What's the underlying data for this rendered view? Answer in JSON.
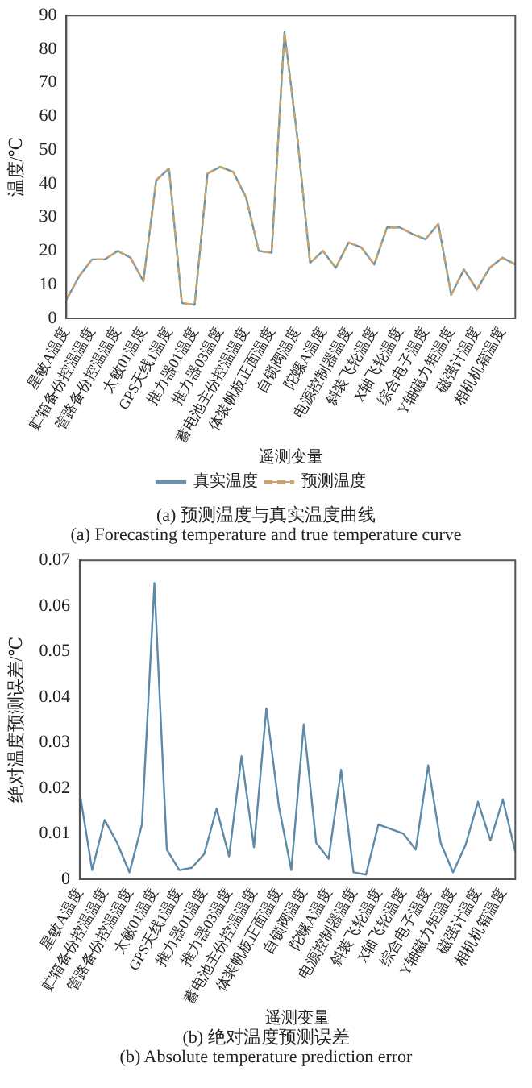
{
  "chart_data": [
    {
      "type": "line",
      "title": "(a) 预测温度与真实温度曲线",
      "subtitle": "(a) Forecasting temperature and true temperature curve",
      "xlabel": "遥测变量",
      "ylabel": "温度/℃",
      "categories": [
        "星敏A温度",
        null,
        "贮箱备份控温温度",
        null,
        "管路备份控温温度",
        null,
        "太敏01温度",
        null,
        "GPS天线1温度",
        null,
        "推力器01温度",
        null,
        "推力器03温度",
        null,
        "蓄电池主份控温温度",
        null,
        "体装帆板正面温度",
        null,
        "自锁阀温度",
        null,
        "陀螺A温度",
        null,
        "电源控制器温度",
        null,
        "斜装飞轮温度",
        null,
        "X轴飞轮温度",
        null,
        "综合电子温度",
        null,
        "Y轴磁力矩温度",
        null,
        "磁强计温度",
        null,
        "相机机箱温度",
        null
      ],
      "series": [
        {
          "name": "真实温度",
          "color": "#6a93ab",
          "line_style": "solid",
          "values": [
            5.5,
            12.5,
            17.5,
            17.5,
            20,
            18,
            11,
            41,
            44.5,
            4.5,
            4,
            43,
            45,
            43.5,
            36,
            20,
            19.5,
            85,
            54,
            16.5,
            20,
            15,
            22.5,
            21,
            16,
            27,
            27,
            25,
            23.5,
            28,
            7,
            14.5,
            8.5,
            15,
            18,
            16
          ]
        },
        {
          "name": "预测温度",
          "color": "#c9a46a",
          "line_style": "dashed",
          "values": [
            5.5,
            12.5,
            17.5,
            17.5,
            20,
            18,
            11,
            41,
            44.5,
            4.5,
            4,
            43,
            45,
            43.5,
            36,
            20,
            19.5,
            85,
            54,
            16.5,
            20,
            15,
            22.5,
            21,
            16,
            27,
            27,
            25,
            23.5,
            28,
            7,
            14.5,
            8.5,
            15,
            18,
            16
          ]
        }
      ],
      "ylim": [
        0,
        90
      ],
      "yticks": [
        0,
        10,
        20,
        30,
        40,
        50,
        60,
        70,
        80,
        90
      ],
      "grid": false,
      "legend": "bottom",
      "marker": "none"
    },
    {
      "type": "line",
      "title": "(b) 绝对温度预测误差",
      "subtitle": "(b) Absolute temperature prediction error",
      "xlabel": "遥测变量",
      "ylabel": "绝对温度预测误差/℃",
      "categories": [
        "星敏A温度",
        null,
        "贮箱备份控温温度",
        null,
        "管路备份控温温度",
        null,
        "太敏01温度",
        null,
        "GPS天线1温度",
        null,
        "推力器01温度",
        null,
        "推力器03温度",
        null,
        "蓄电池主份控温温度",
        null,
        "体装帆板正面温度",
        null,
        "自锁阀温度",
        null,
        "陀螺A温度",
        null,
        "电源控制器温度",
        null,
        "斜装飞轮温度",
        null,
        "X轴飞轮温度",
        null,
        "综合电子温度",
        null,
        "Y轴磁力矩温度",
        null,
        "磁强计温度",
        null,
        "相机机箱温度",
        null
      ],
      "series": [
        {
          "color": "#5d8aa8",
          "line_style": "solid",
          "values": [
            0.019,
            0.002,
            0.013,
            0.008,
            0.0015,
            0.012,
            0.065,
            0.0065,
            0.002,
            0.0025,
            0.0055,
            0.0155,
            0.005,
            0.027,
            0.007,
            0.0375,
            0.016,
            0.002,
            0.034,
            0.008,
            0.0045,
            0.024,
            0.0015,
            0.001,
            0.012,
            0.011,
            0.01,
            0.0065,
            0.025,
            0.008,
            0.0015,
            0.0075,
            0.017,
            0.0085,
            0.0175,
            0.006
          ]
        }
      ],
      "ylim": [
        0,
        0.07
      ],
      "yticks": [
        0,
        0.01,
        0.02,
        0.03,
        0.04,
        0.05,
        0.06,
        0.07
      ],
      "grid": false,
      "legend": false,
      "marker": "none"
    }
  ]
}
